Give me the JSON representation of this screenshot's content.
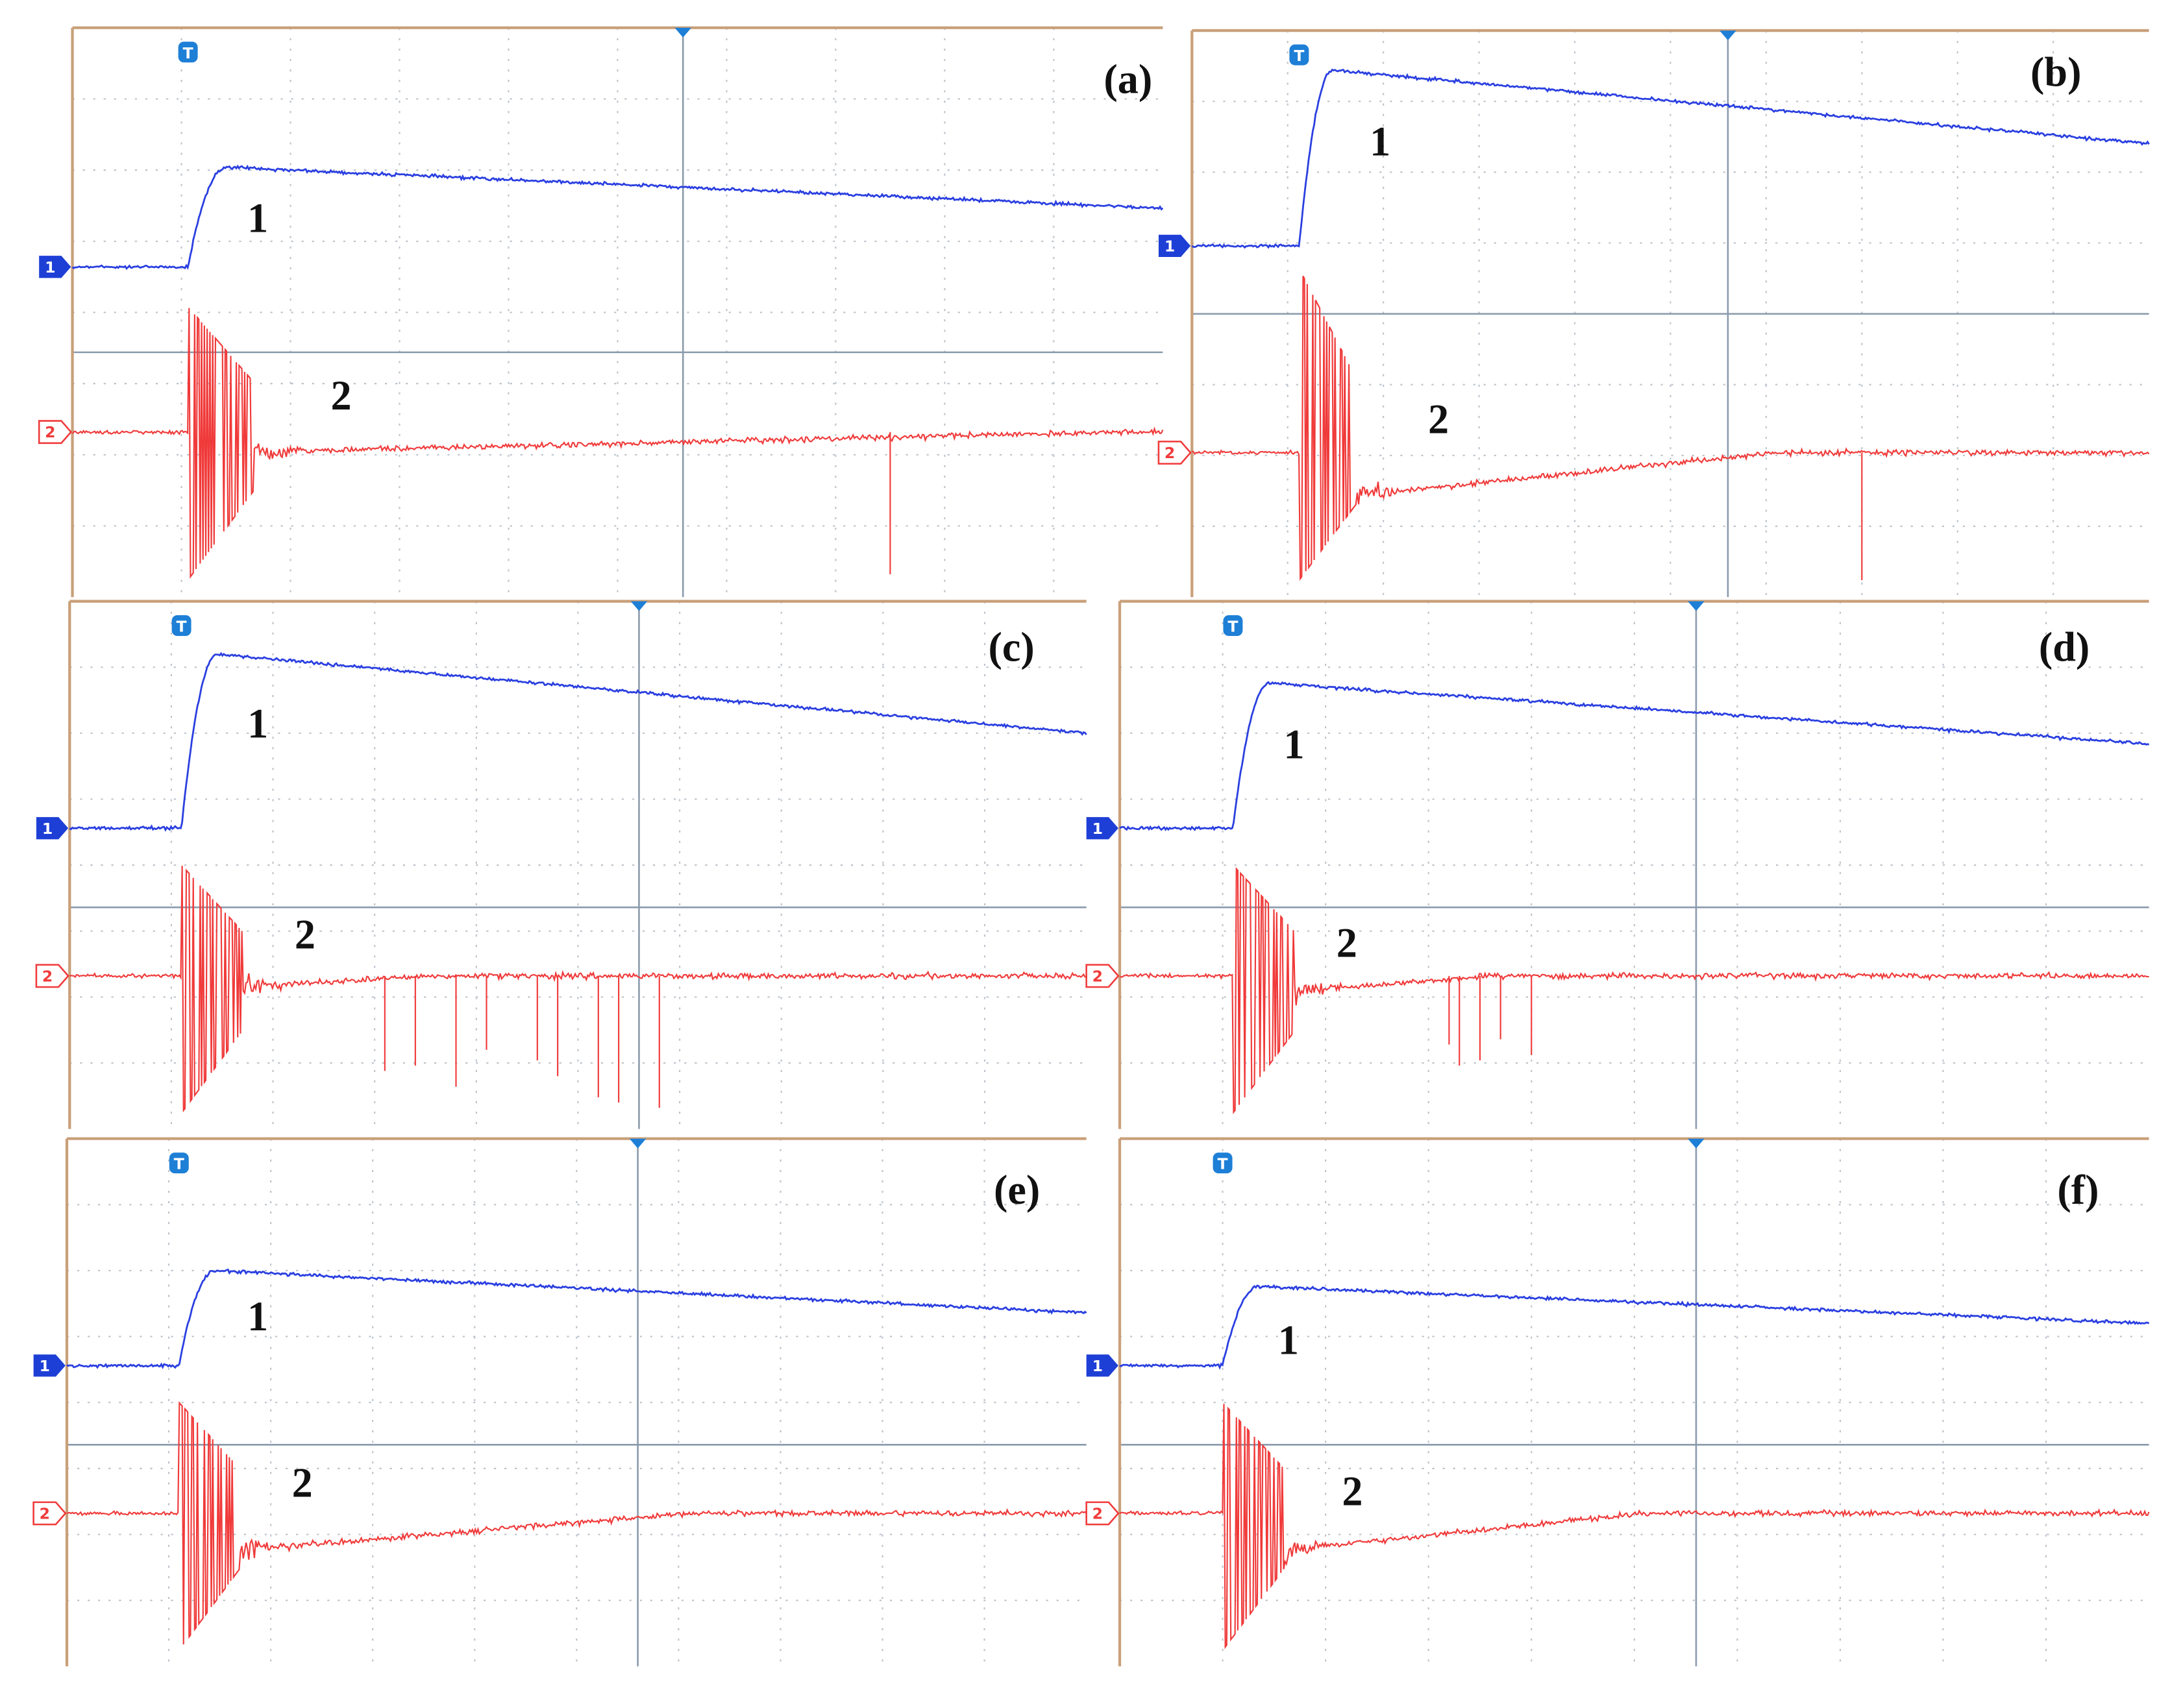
{
  "panels": [
    {
      "label": "(a)",
      "trace1": "1",
      "trace2": "2",
      "trigger": "T",
      "channel1": "1",
      "channel2": "2"
    },
    {
      "label": "(b)",
      "trace1": "1",
      "trace2": "2",
      "trigger": "T",
      "channel1": "1",
      "channel2": "2"
    },
    {
      "label": "(c)",
      "trace1": "1",
      "trace2": "2",
      "trigger": "T",
      "channel1": "1",
      "channel2": "2"
    },
    {
      "label": "(d)",
      "trace1": "1",
      "trace2": "2",
      "trigger": "T",
      "channel1": "1",
      "channel2": "2"
    },
    {
      "label": "(e)",
      "trace1": "1",
      "trace2": "2",
      "trigger": "T",
      "channel1": "1",
      "channel2": "2"
    },
    {
      "label": "(f)",
      "trace1": "1",
      "trace2": "2",
      "trigger": "T",
      "channel1": "1",
      "channel2": "2"
    }
  ]
}
